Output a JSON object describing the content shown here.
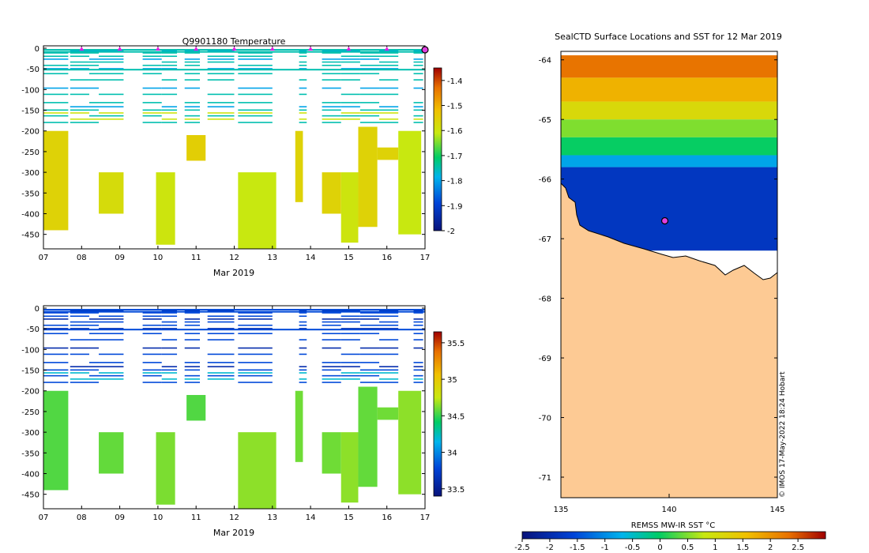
{
  "chart_data": [
    {
      "type": "heatmap",
      "panel": "temperature-section",
      "title": "Q9901180  Temperature",
      "xlabel": "Mar 2019",
      "ylabel": "",
      "x_ticks": [
        "07",
        "08",
        "09",
        "10",
        "11",
        "12",
        "13",
        "14",
        "15",
        "16",
        "17"
      ],
      "x_range": [
        7,
        17
      ],
      "y_ticks": [
        0,
        -50,
        -100,
        -150,
        -200,
        -250,
        -300,
        -350,
        -400,
        -450
      ],
      "y_range": [
        -485,
        0
      ],
      "colorbar": {
        "min": -2,
        "max": -1.35,
        "ticks": [
          -1.4,
          -1.5,
          -1.6,
          -1.7,
          -1.8,
          -1.9,
          -2
        ]
      },
      "profile_markers_x": [
        8,
        9,
        10,
        11,
        12,
        13,
        14,
        15,
        16
      ],
      "current_marker_x": 17,
      "blocks": [
        {
          "x0": 7.0,
          "x1": 7.65,
          "d0": 200,
          "d1": 440,
          "v": -1.56
        },
        {
          "x0": 8.45,
          "x1": 9.1,
          "d0": 300,
          "d1": 400,
          "v": -1.58
        },
        {
          "x0": 9.95,
          "x1": 10.45,
          "d0": 300,
          "d1": 475,
          "v": -1.6
        },
        {
          "x0": 10.75,
          "x1": 11.25,
          "d0": 210,
          "d1": 272,
          "v": -1.55
        },
        {
          "x0": 12.1,
          "x1": 13.1,
          "d0": 300,
          "d1": 485,
          "v": -1.61
        },
        {
          "x0": 13.6,
          "x1": 13.8,
          "d0": 200,
          "d1": 372,
          "v": -1.56
        },
        {
          "x0": 14.3,
          "x1": 14.8,
          "d0": 300,
          "d1": 400,
          "v": -1.56
        },
        {
          "x0": 14.8,
          "x1": 15.25,
          "d0": 300,
          "d1": 470,
          "v": -1.6
        },
        {
          "x0": 15.25,
          "x1": 15.75,
          "d0": 190,
          "d1": 432,
          "v": -1.56
        },
        {
          "x0": 15.75,
          "x1": 16.3,
          "d0": 240,
          "d1": 270,
          "v": -1.56
        },
        {
          "x0": 16.3,
          "x1": 16.9,
          "d0": 200,
          "d1": 450,
          "v": -1.61
        }
      ]
    },
    {
      "type": "heatmap",
      "panel": "salinity-section",
      "title": "",
      "xlabel": "Mar 2019",
      "ylabel": "",
      "x_ticks": [
        "07",
        "08",
        "09",
        "10",
        "11",
        "12",
        "13",
        "14",
        "15",
        "16",
        "17"
      ],
      "x_range": [
        7,
        17
      ],
      "y_ticks": [
        0,
        -50,
        -100,
        -150,
        -200,
        -250,
        -300,
        -350,
        -400,
        -450
      ],
      "y_range": [
        -485,
        0
      ],
      "colorbar": {
        "min": 33.4,
        "max": 35.65,
        "ticks": [
          35.5,
          35,
          34.5,
          34,
          33.5
        ]
      },
      "blocks": [
        {
          "x0": 7.0,
          "x1": 7.65,
          "d0": 200,
          "d1": 440,
          "v": 34.55
        },
        {
          "x0": 8.45,
          "x1": 9.1,
          "d0": 300,
          "d1": 400,
          "v": 34.58
        },
        {
          "x0": 9.95,
          "x1": 10.45,
          "d0": 300,
          "d1": 475,
          "v": 34.62
        },
        {
          "x0": 10.75,
          "x1": 11.25,
          "d0": 210,
          "d1": 272,
          "v": 34.55
        },
        {
          "x0": 12.1,
          "x1": 13.1,
          "d0": 300,
          "d1": 485,
          "v": 34.65
        },
        {
          "x0": 13.6,
          "x1": 13.8,
          "d0": 200,
          "d1": 372,
          "v": 34.6
        },
        {
          "x0": 14.3,
          "x1": 14.8,
          "d0": 300,
          "d1": 400,
          "v": 34.6
        },
        {
          "x0": 14.8,
          "x1": 15.25,
          "d0": 300,
          "d1": 470,
          "v": 34.65
        },
        {
          "x0": 15.25,
          "x1": 15.75,
          "d0": 190,
          "d1": 432,
          "v": 34.58
        },
        {
          "x0": 15.75,
          "x1": 16.3,
          "d0": 240,
          "d1": 270,
          "v": 34.6
        },
        {
          "x0": 16.3,
          "x1": 16.9,
          "d0": 200,
          "d1": 450,
          "v": 34.65
        }
      ]
    },
    {
      "type": "heatmap",
      "panel": "sst-map",
      "title": "SealCTD Surface Locations and SST for 12 Mar 2019",
      "xlabel": "",
      "ylabel": "",
      "x_ticks": [
        135,
        140,
        145
      ],
      "x_range": [
        135,
        145
      ],
      "y_ticks": [
        -64,
        -65,
        -66,
        -67,
        -68,
        -69,
        -70,
        -71
      ],
      "y_range": [
        -71,
        -63.5
      ],
      "colorbar": {
        "label": "REMSS MW-IR SST °C",
        "min": -2.5,
        "max": 3.0,
        "ticks": [
          -2.5,
          -2,
          -1.5,
          -1,
          -0.5,
          0,
          0.5,
          1,
          1.5,
          2,
          2.5
        ]
      },
      "sst_latitude_bands": [
        {
          "lat0": -63.5,
          "lat1": -64.3,
          "v": 2.3
        },
        {
          "lat0": -64.3,
          "lat1": -64.7,
          "v": 1.7
        },
        {
          "lat0": -64.7,
          "lat1": -65.0,
          "v": 1.1
        },
        {
          "lat0": -65.0,
          "lat1": -65.3,
          "v": 0.5
        },
        {
          "lat0": -65.3,
          "lat1": -65.6,
          "v": 0.0
        },
        {
          "lat0": -65.6,
          "lat1": -65.8,
          "v": -0.8
        },
        {
          "lat0": -65.8,
          "lat1": -67.2,
          "v": -1.8
        }
      ],
      "seal_location": {
        "lon": 139.8,
        "lat": -66.7
      },
      "credit": "© IMOS 17-May-2022 18:24 Hobart"
    }
  ]
}
